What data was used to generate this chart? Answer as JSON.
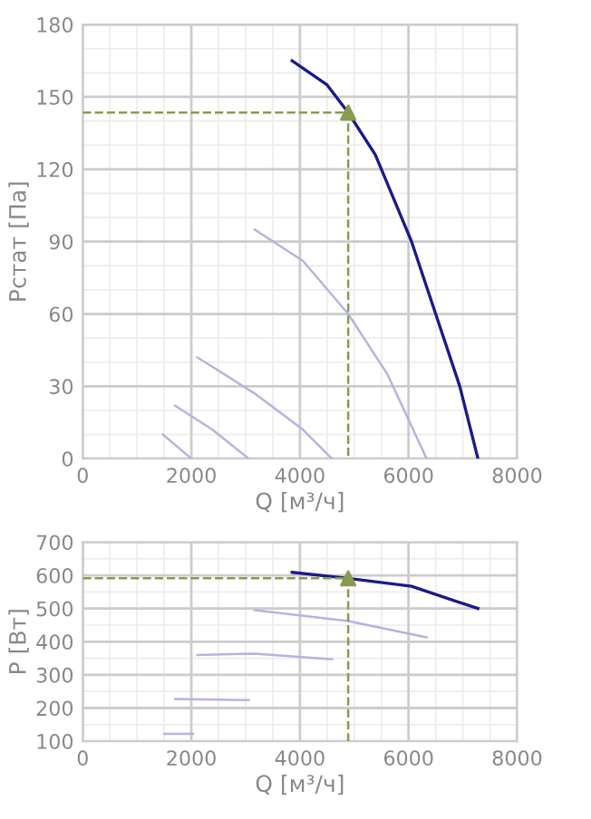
{
  "chart_data": [
    {
      "type": "line",
      "xlabel": "Q [м³/ч]",
      "ylabel": "Pстат [Па]",
      "xlim": [
        0,
        8000
      ],
      "ylim": [
        0,
        180
      ],
      "xticks": [
        0,
        2000,
        4000,
        6000,
        8000
      ],
      "yticks": [
        0,
        30,
        60,
        90,
        120,
        150,
        180
      ],
      "grid": true,
      "marker": "none",
      "series": [
        {
          "color": "#1a1a8c",
          "x": [
            3856,
            4500,
            4889,
            5389,
            6056,
            6500,
            6944,
            7278
          ],
          "values": [
            165,
            155,
            143.5,
            126,
            90,
            60,
            30,
            0
          ]
        },
        {
          "color": "#b4b4e2",
          "x": [
            3167,
            4056,
            4889,
            5611,
            6333
          ],
          "values": [
            95,
            82,
            60,
            35,
            0
          ]
        },
        {
          "color": "#b4b4e2",
          "x": [
            2111,
            3167,
            4056,
            4589
          ],
          "values": [
            42,
            27,
            12,
            0
          ]
        },
        {
          "color": "#b4b4e2",
          "x": [
            1700,
            2389,
            3056
          ],
          "values": [
            22,
            12,
            0
          ]
        },
        {
          "color": "#b4b4e2",
          "x": [
            1478,
            2000
          ],
          "values": [
            10,
            0
          ]
        },
        {
          "color": "#8a9a50",
          "line_style": "dashed",
          "x": [
            0,
            4889,
            4889
          ],
          "values": [
            143.5,
            143.5,
            0
          ]
        },
        {
          "type": "scatter",
          "marker": "triangle",
          "color": "#8a9a50",
          "x": [
            4889
          ],
          "values": [
            143.5
          ]
        }
      ]
    },
    {
      "type": "line",
      "xlabel": "Q [м³/ч]",
      "ylabel": "P [Вт]",
      "xlim": [
        0,
        8000
      ],
      "ylim": [
        100,
        700
      ],
      "xticks": [
        0,
        2000,
        4000,
        6000,
        8000
      ],
      "yticks": [
        100,
        200,
        300,
        400,
        500,
        600,
        700
      ],
      "grid": true,
      "marker": "none",
      "series": [
        {
          "color": "#1a1a8c",
          "x": [
            3856,
            4889,
            6056,
            7278
          ],
          "values": [
            609,
            591,
            567,
            500
          ]
        },
        {
          "color": "#b4b4e2",
          "x": [
            3167,
            4889,
            6333
          ],
          "values": [
            495,
            462,
            413
          ]
        },
        {
          "color": "#b4b4e2",
          "x": [
            2111,
            3167,
            4589
          ],
          "values": [
            360,
            364,
            347
          ]
        },
        {
          "color": "#b4b4e2",
          "x": [
            1700,
            3056
          ],
          "values": [
            227,
            224
          ]
        },
        {
          "color": "#b4b4e2",
          "x": [
            1500,
            2033
          ],
          "values": [
            122,
            122
          ]
        },
        {
          "color": "#8a9a50",
          "line_style": "dashed",
          "x": [
            0,
            4889,
            4889
          ],
          "values": [
            591,
            591,
            100
          ]
        },
        {
          "type": "scatter",
          "marker": "triangle",
          "color": "#8a9a50",
          "x": [
            4889
          ],
          "values": [
            591
          ]
        }
      ]
    }
  ]
}
